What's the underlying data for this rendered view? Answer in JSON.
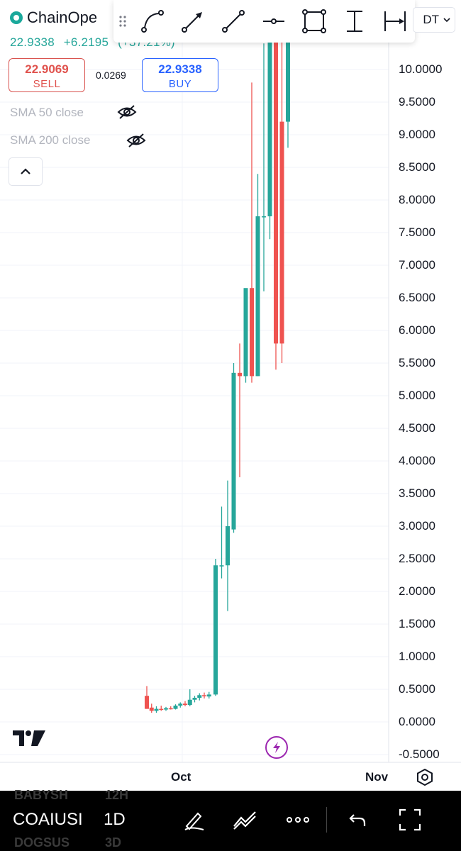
{
  "header": {
    "title": "ChainOpe",
    "last_price": "22.9338",
    "change": "+6.2195",
    "change_pct": "(+37.21%)",
    "sell_price": "22.9069",
    "sell_label": "SELL",
    "spread": "0.0269",
    "buy_price": "22.9338",
    "buy_label": "BUY",
    "symbol_suffix": "DT"
  },
  "indicators": [
    {
      "label": "SMA 50 close"
    },
    {
      "label": "SMA 200 close"
    }
  ],
  "toolbar": {
    "tools": [
      "curve-tool-icon",
      "arrow-tool-icon",
      "trend-line-tool-icon",
      "horizontal-line-tool-icon",
      "rectangle-tool-icon",
      "vertical-line-tool-icon",
      "date-range-tool-icon"
    ]
  },
  "chart_data": {
    "type": "candlestick",
    "y_ticks": [
      "10.0000",
      "9.5000",
      "9.0000",
      "8.5000",
      "8.0000",
      "7.5000",
      "7.0000",
      "6.5000",
      "6.0000",
      "5.5000",
      "5.0000",
      "4.5000",
      "4.0000",
      "3.5000",
      "3.0000",
      "2.5000",
      "2.0000",
      "1.5000",
      "1.0000",
      "0.5000",
      "0.0000",
      "-0.5000"
    ],
    "x_ticks": [
      "Oct",
      "Nov"
    ],
    "ylim": [
      -0.55,
      10.7
    ],
    "candles": [
      {
        "o": 0.4,
        "h": 0.55,
        "l": 0.2,
        "c": 0.2
      },
      {
        "o": 0.22,
        "h": 0.28,
        "l": 0.14,
        "c": 0.17
      },
      {
        "o": 0.17,
        "h": 0.24,
        "l": 0.14,
        "c": 0.2
      },
      {
        "o": 0.2,
        "h": 0.25,
        "l": 0.17,
        "c": 0.19
      },
      {
        "o": 0.19,
        "h": 0.23,
        "l": 0.17,
        "c": 0.21
      },
      {
        "o": 0.21,
        "h": 0.24,
        "l": 0.19,
        "c": 0.2
      },
      {
        "o": 0.2,
        "h": 0.27,
        "l": 0.19,
        "c": 0.25
      },
      {
        "o": 0.25,
        "h": 0.3,
        "l": 0.22,
        "c": 0.28
      },
      {
        "o": 0.28,
        "h": 0.32,
        "l": 0.24,
        "c": 0.26
      },
      {
        "o": 0.26,
        "h": 0.5,
        "l": 0.24,
        "c": 0.34
      },
      {
        "o": 0.34,
        "h": 0.4,
        "l": 0.3,
        "c": 0.37
      },
      {
        "o": 0.37,
        "h": 0.44,
        "l": 0.33,
        "c": 0.41
      },
      {
        "o": 0.41,
        "h": 0.45,
        "l": 0.36,
        "c": 0.4
      },
      {
        "o": 0.39,
        "h": 0.46,
        "l": 0.36,
        "c": 0.42
      },
      {
        "o": 0.42,
        "h": 2.5,
        "l": 0.4,
        "c": 2.4
      },
      {
        "o": 2.4,
        "h": 3.3,
        "l": 2.2,
        "c": 2.4
      },
      {
        "o": 2.4,
        "h": 3.7,
        "l": 1.7,
        "c": 3.0
      },
      {
        "o": 2.95,
        "h": 5.5,
        "l": 2.9,
        "c": 5.35
      },
      {
        "o": 5.35,
        "h": 5.8,
        "l": 3.75,
        "c": 5.3
      },
      {
        "o": 5.3,
        "h": 6.6,
        "l": 5.2,
        "c": 6.65
      },
      {
        "o": 6.65,
        "h": 9.8,
        "l": 5.2,
        "c": 5.3
      },
      {
        "o": 5.3,
        "h": 8.4,
        "l": 5.3,
        "c": 7.75
      },
      {
        "o": 7.75,
        "h": 10.4,
        "l": 6.6,
        "c": 7.75
      },
      {
        "o": 7.75,
        "h": 10.7,
        "l": 7.4,
        "c": 10.7
      },
      {
        "o": 10.7,
        "h": 10.7,
        "l": 5.4,
        "c": 5.8
      },
      {
        "o": 9.2,
        "h": 10.7,
        "l": 5.5,
        "c": 5.8
      },
      {
        "o": 9.2,
        "h": 10.7,
        "l": 8.8,
        "c": 10.7
      }
    ]
  },
  "bottom_bar": {
    "symbol": "COAIUSI",
    "interval": "1D",
    "ghost_symbol_above": "BABYSH",
    "ghost_interval_above": "12H",
    "ghost_symbol_below": "DOGSUS",
    "ghost_interval_below": "3D"
  },
  "colors": {
    "up": "#26a69a",
    "down": "#ef5350",
    "grid": "#f0f3fa"
  }
}
